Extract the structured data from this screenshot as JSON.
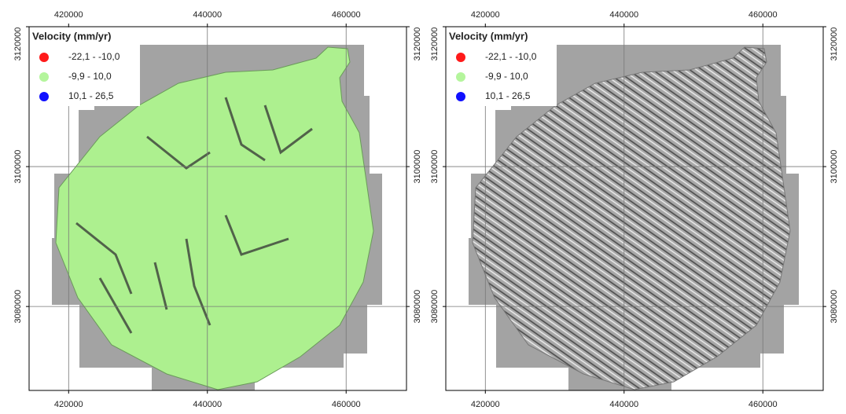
{
  "panels": [
    {
      "legend": {
        "title": "Velocity (mm/yr)",
        "items": [
          {
            "label": "-22,1 - -10,0",
            "color": "#ff1a1a"
          },
          {
            "label": "-9,9 - 10,0",
            "color": "#b4f59c"
          },
          {
            "label": "10,1 - 26,5",
            "color": "#1010ff"
          }
        ]
      },
      "xlim": [
        414300,
        468700
      ],
      "ylim": [
        3068000,
        3120000
      ],
      "xticks": [
        420000,
        440000,
        460000
      ],
      "yticks": [
        3080000,
        3100000,
        3120000
      ]
    },
    {
      "legend": {
        "title": "Velocity (mm/yr)",
        "items": [
          {
            "label": "-22,1 - -10,0",
            "color": "#ff1a1a"
          },
          {
            "label": "-9,9 - 10,0",
            "color": "#b4f59c"
          },
          {
            "label": "10,1 - 26,5",
            "color": "#1010ff"
          }
        ]
      },
      "xlim": [
        414300,
        468700
      ],
      "ylim": [
        3068000,
        3120000
      ],
      "xticks": [
        420000,
        440000,
        460000
      ],
      "yticks": [
        3080000,
        3100000,
        3120000
      ]
    }
  ]
}
